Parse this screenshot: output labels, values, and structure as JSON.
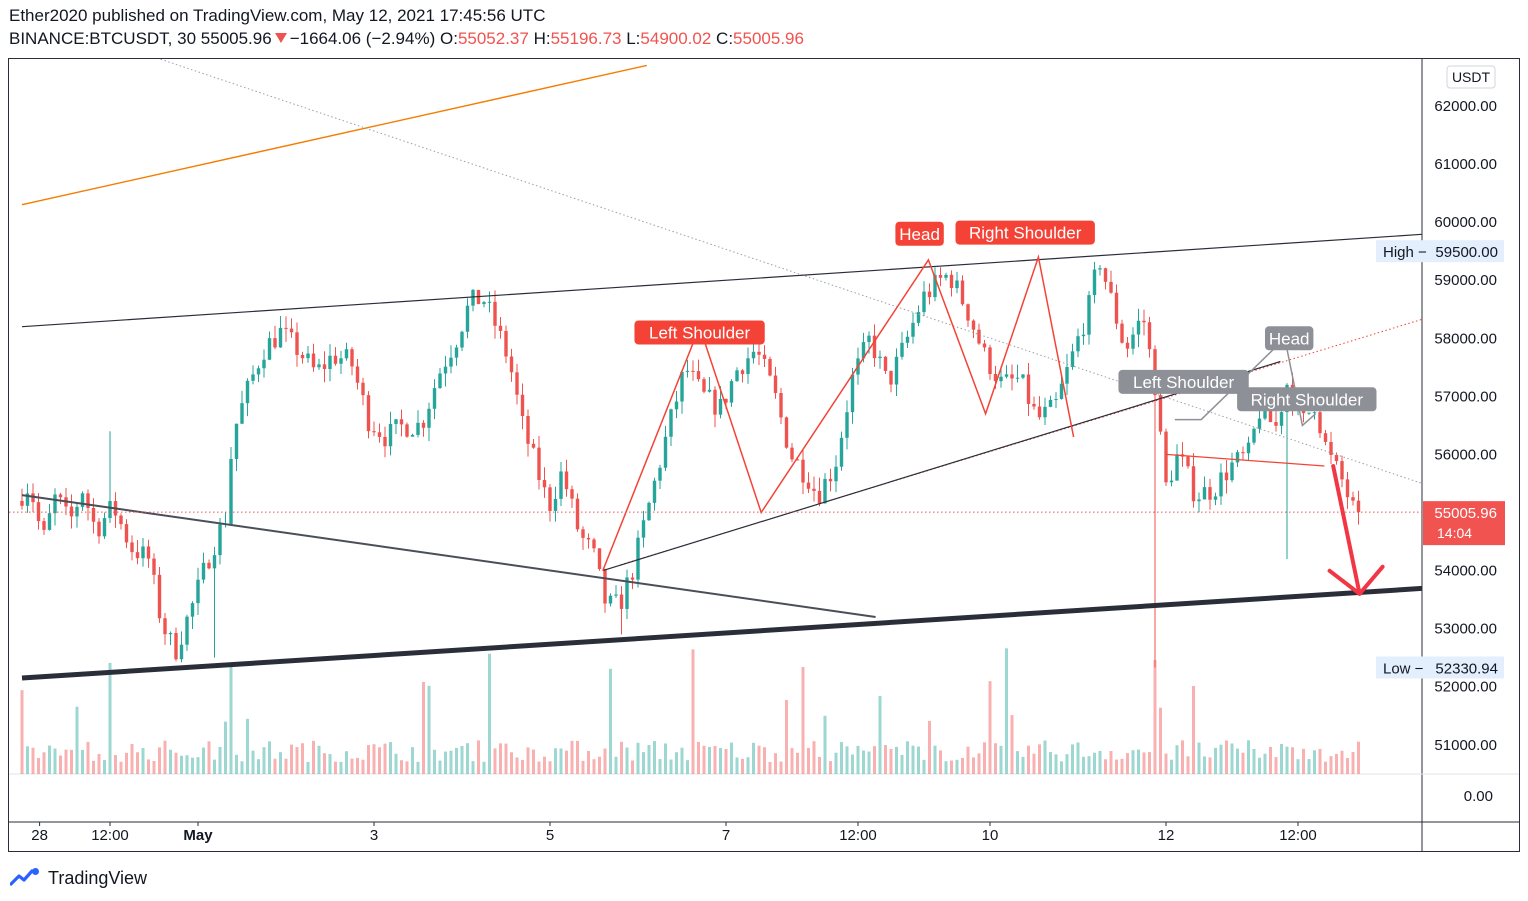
{
  "header": {
    "publisher_line": "Ether2020 published on TradingView.com, May 12, 2021 17:45:56 UTC",
    "symbol": "BINANCE:BTCUSDT, 30",
    "last": "55005.96",
    "change": "−1664.06 (−2.94%)",
    "o_label": "O:",
    "o_value": "55052.37",
    "h_label": "H:",
    "h_value": "55196.73",
    "l_label": "L:",
    "l_value": "54900.02",
    "c_label": "C:",
    "c_value": "55005.96"
  },
  "footer": {
    "brand": "TradingView"
  },
  "colors": {
    "up": "#26a69a",
    "down": "#ef5350",
    "pattern_red": "#f44336",
    "pattern_gray": "#8d9096",
    "orange": "#f57c00"
  },
  "chart_data": {
    "type": "candlestick",
    "symbol": "BINANCE:BTCUSDT",
    "interval": "30",
    "currency": "USDT",
    "price_axis": {
      "ticks": [
        62000,
        61000,
        60000,
        59000,
        58000,
        57000,
        56000,
        55000,
        54000,
        53000,
        52000,
        51000
      ],
      "tick_labels": [
        "62000.00",
        "61000.00",
        "60000.00",
        "59000.00",
        "58000.00",
        "57000.00",
        "56000.00",
        "55000.00",
        "54000.00",
        "53000.00",
        "52000.00",
        "51000.00"
      ],
      "volume_zero_label": "0.00"
    },
    "time_axis": {
      "labels": [
        {
          "t": 0.2,
          "label": "28"
        },
        {
          "t": 1.0,
          "label": "12:00"
        },
        {
          "t": 2.0,
          "label": "May"
        },
        {
          "t": 4.0,
          "label": "3"
        },
        {
          "t": 6.0,
          "label": "5"
        },
        {
          "t": 8.0,
          "label": "7"
        },
        {
          "t": 9.5,
          "label": "12:00"
        },
        {
          "t": 11.0,
          "label": "10"
        },
        {
          "t": 13.0,
          "label": "12"
        },
        {
          "t": 14.5,
          "label": "12:00"
        }
      ]
    },
    "session": {
      "high": 59500,
      "high_label": "High",
      "high_value": "59500.00",
      "low": 52330.94,
      "low_label": "Low",
      "low_value": "52330.94"
    },
    "last_price": {
      "value": 55005.96,
      "label": "55005.96",
      "countdown": "14:04"
    },
    "price_path": [
      [
        0.0,
        55200
      ],
      [
        0.15,
        55500
      ],
      [
        0.3,
        54500
      ],
      [
        0.45,
        55300
      ],
      [
        0.6,
        54800
      ],
      [
        0.75,
        55400
      ],
      [
        0.9,
        54700
      ],
      [
        1.1,
        55100
      ],
      [
        1.3,
        54400
      ],
      [
        1.5,
        54200
      ],
      [
        1.65,
        53100
      ],
      [
        1.8,
        52600
      ],
      [
        2.0,
        53400
      ],
      [
        2.2,
        54300
      ],
      [
        2.4,
        55000
      ],
      [
        2.45,
        56300
      ],
      [
        2.6,
        57000
      ],
      [
        2.8,
        57800
      ],
      [
        3.0,
        58100
      ],
      [
        3.2,
        57800
      ],
      [
        3.4,
        57400
      ],
      [
        3.6,
        57700
      ],
      [
        3.8,
        57600
      ],
      [
        4.0,
        56600
      ],
      [
        4.2,
        56300
      ],
      [
        4.4,
        56500
      ],
      [
        4.6,
        56500
      ],
      [
        4.8,
        57400
      ],
      [
        5.0,
        58000
      ],
      [
        5.15,
        58600
      ],
      [
        5.3,
        58700
      ],
      [
        5.45,
        58200
      ],
      [
        5.6,
        57600
      ],
      [
        5.75,
        56500
      ],
      [
        5.9,
        55800
      ],
      [
        6.05,
        55100
      ],
      [
        6.2,
        55700
      ],
      [
        6.4,
        54600
      ],
      [
        6.55,
        54300
      ],
      [
        6.7,
        53400
      ],
      [
        6.85,
        53400
      ],
      [
        7.0,
        54000
      ],
      [
        7.2,
        55200
      ],
      [
        7.4,
        56400
      ],
      [
        7.6,
        57500
      ],
      [
        7.8,
        57000
      ],
      [
        8.0,
        56800
      ],
      [
        8.2,
        57500
      ],
      [
        8.4,
        57800
      ],
      [
        8.6,
        57100
      ],
      [
        8.8,
        56000
      ],
      [
        9.0,
        55600
      ],
      [
        9.1,
        55300
      ],
      [
        9.3,
        55800
      ],
      [
        9.5,
        57300
      ],
      [
        9.7,
        58000
      ],
      [
        9.9,
        57200
      ],
      [
        10.1,
        57900
      ],
      [
        10.3,
        58700
      ],
      [
        10.5,
        59000
      ],
      [
        10.6,
        59100
      ],
      [
        10.8,
        58500
      ],
      [
        11.0,
        57700
      ],
      [
        11.2,
        57200
      ],
      [
        11.4,
        57300
      ],
      [
        11.6,
        56600
      ],
      [
        11.8,
        56800
      ],
      [
        12.0,
        57700
      ],
      [
        12.2,
        58600
      ],
      [
        12.3,
        59400
      ],
      [
        12.45,
        58600
      ],
      [
        12.6,
        57800
      ],
      [
        12.8,
        58400
      ],
      [
        12.95,
        57100
      ],
      [
        13.05,
        55400
      ],
      [
        13.2,
        56000
      ],
      [
        13.4,
        55300
      ],
      [
        13.6,
        55400
      ],
      [
        13.8,
        55800
      ],
      [
        14.0,
        56000
      ],
      [
        14.15,
        56900
      ],
      [
        14.3,
        56400
      ],
      [
        14.45,
        57300
      ],
      [
        14.6,
        56500
      ],
      [
        14.75,
        56900
      ],
      [
        14.9,
        56000
      ],
      [
        15.05,
        55600
      ],
      [
        15.2,
        55005.96
      ]
    ],
    "annotations": [
      {
        "text": "Left Shoulder",
        "t": 7.7,
        "price": 58100,
        "color": "red"
      },
      {
        "text": "Head",
        "t": 10.2,
        "price": 59800,
        "color": "red"
      },
      {
        "text": "Right Shoulder",
        "t": 11.4,
        "price": 59820,
        "color": "red"
      },
      {
        "text": "Head",
        "t": 14.4,
        "price": 58000,
        "color": "gray"
      },
      {
        "text": "Left Shoulder",
        "t": 13.2,
        "price": 57250,
        "color": "gray"
      },
      {
        "text": "Right Shoulder",
        "t": 14.6,
        "price": 56950,
        "color": "gray"
      }
    ],
    "pattern_lines": {
      "red_hs": [
        [
          6.6,
          54000
        ],
        [
          7.7,
          58200
        ],
        [
          8.4,
          55000
        ],
        [
          10.3,
          59350
        ],
        [
          10.95,
          56700
        ],
        [
          11.55,
          59400
        ],
        [
          11.95,
          56300
        ]
      ],
      "gray_hs": [
        [
          13.1,
          56600
        ],
        [
          13.4,
          56600
        ],
        [
          14.35,
          58000
        ],
        [
          14.55,
          56500
        ],
        [
          14.7,
          56700
        ]
      ],
      "gray_neckline": [
        [
          13.0,
          56000
        ],
        [
          14.8,
          55800
        ]
      ],
      "rising_channel_top": [
        [
          0.0,
          58200
        ],
        [
          16.5,
          59850
        ]
      ],
      "rising_channel_mid": [
        [
          6.6,
          54000
        ],
        [
          14.3,
          57600
        ]
      ],
      "descending_line": [
        [
          0.0,
          55300
        ],
        [
          9.7,
          53200
        ]
      ],
      "support_line": [
        [
          0.0,
          52150
        ],
        [
          16.5,
          53750
        ]
      ],
      "orange_line": [
        [
          0.0,
          60300
        ],
        [
          7.1,
          62700
        ]
      ],
      "dotted_downtrend": [
        [
          0.8,
          63200
        ],
        [
          16.5,
          55200
        ]
      ],
      "dotted_red": [
        [
          6.8,
          54100
        ],
        [
          16.5,
          58600
        ]
      ],
      "arrow": [
        [
          14.9,
          55800
        ],
        [
          15.2,
          53600
        ]
      ]
    }
  }
}
